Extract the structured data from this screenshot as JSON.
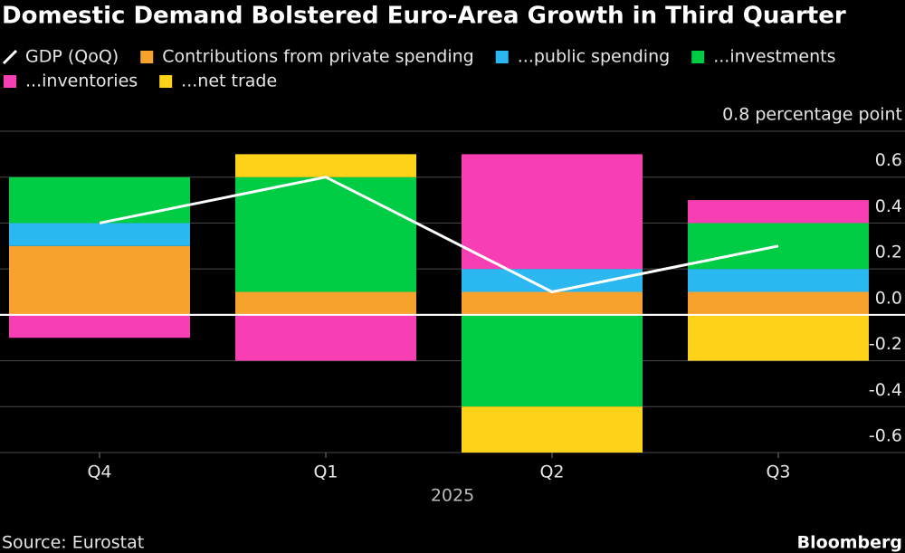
{
  "chart_data": {
    "type": "bar",
    "stacked": true,
    "title": "Domestic Demand Bolstered Euro-Area Growth in Third Quarter",
    "categories": [
      "Q4",
      "Q1",
      "Q2",
      "Q3"
    ],
    "xlabel": "2025",
    "series": [
      {
        "name": "GDP (QoQ)",
        "type": "line",
        "color": "#ffffff",
        "values": [
          0.4,
          0.6,
          0.1,
          0.3
        ]
      },
      {
        "name": "Contributions from private spending",
        "color": "#f7a22d",
        "values": [
          0.3,
          0.1,
          0.1,
          0.1
        ]
      },
      {
        "name": "...public spending",
        "color": "#2bb8f0",
        "values": [
          0.1,
          0,
          0.1,
          0.1
        ]
      },
      {
        "name": "...investments",
        "color": "#00cc44",
        "values": [
          0.2,
          0.5,
          -0.4,
          0.2
        ]
      },
      {
        "name": "...inventories",
        "color": "#f73fb3",
        "values": [
          -0.1,
          -0.2,
          0.5,
          0.1
        ]
      },
      {
        "name": "...net trade",
        "color": "#ffd21a",
        "values": [
          0,
          0.1,
          -0.2,
          -0.2
        ]
      }
    ],
    "ylim": [
      -0.6,
      0.8
    ],
    "yticks": [
      -0.6,
      -0.4,
      -0.2,
      {
        "value": 0,
        "label": "0.0"
      },
      0.2,
      0.4,
      0.6,
      {
        "value": 0.8,
        "label": "0.8 percentage point"
      }
    ],
    "grid": true,
    "source": "Source: Eurostat",
    "brand": "Bloomberg"
  }
}
